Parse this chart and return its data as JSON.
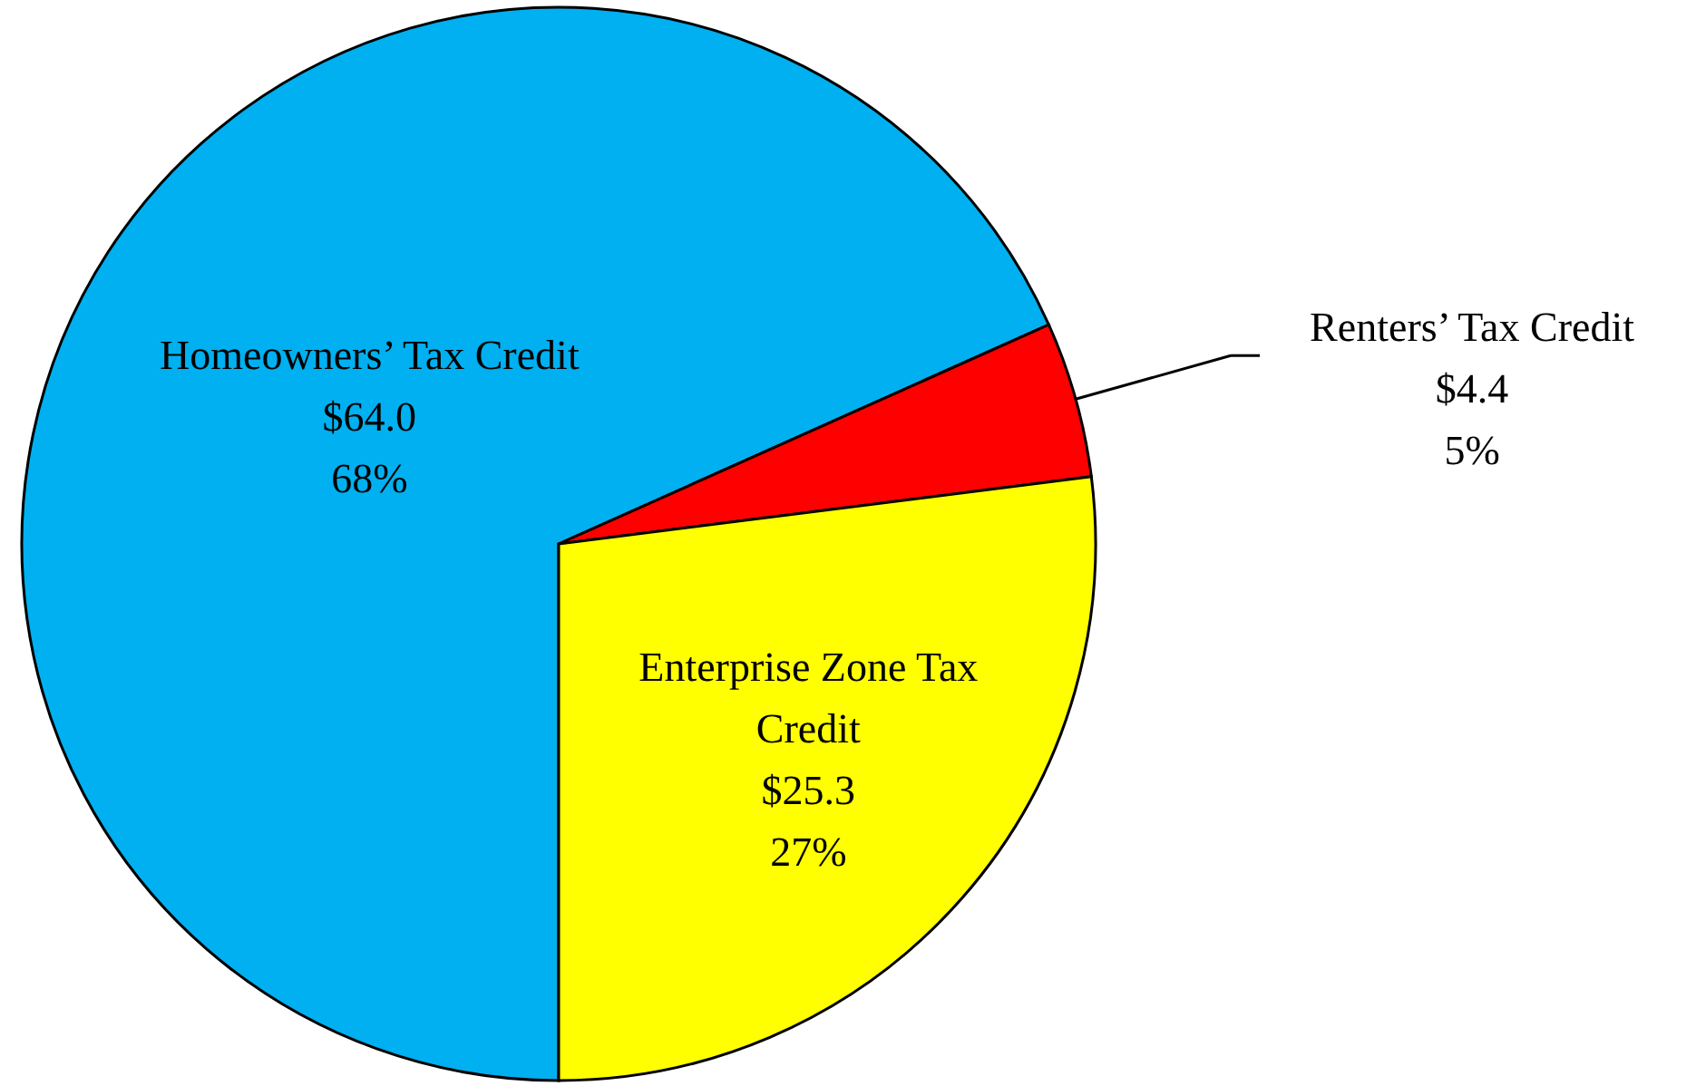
{
  "chart_data": {
    "type": "pie",
    "categories": [
      "Homeowners’ Tax Credit",
      "Renters’ Tax Credit",
      "Enterprise Zone Tax Credit"
    ],
    "values": [
      64.0,
      4.4,
      25.3
    ],
    "colors": [
      "#00b0f0",
      "#ff0000",
      "#ffff00"
    ],
    "value_labels": [
      "$64.0\n68%",
      "$4.4\n5%",
      "$25.3\n27%"
    ]
  }
}
